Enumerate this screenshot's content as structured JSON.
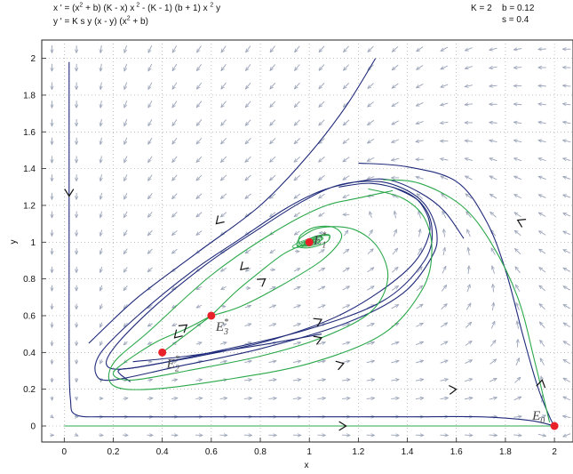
{
  "header": {
    "eq_x": {
      "p1": "x ' = (x",
      "s1": "2",
      "p2": " + b) (K - x) x",
      "s2": " 2",
      "p3": " - (K - 1) (b + 1) x ",
      "s3": " 2",
      "p4": " y"
    },
    "eq_y": "y ' = K s y (x - y) (x  + b)",
    "eq_y_parts": {
      "p1": "y ' = K s y (x - y) (x",
      "s1": "2",
      "p2": " + b)"
    },
    "param_K": "K = 2",
    "param_b": "b = 0.12",
    "param_s": "s = 0.4"
  },
  "chart_data": {
    "type": "phase-portrait",
    "title": "",
    "xlabel": "x",
    "ylabel": "y",
    "xlim": [
      -0.1,
      2.05
    ],
    "ylim": [
      -0.1,
      2.05
    ],
    "xticks": [
      "0",
      "0.2",
      "0.4",
      "0.6",
      "0.8",
      "1",
      "1.2",
      "1.4",
      "1.6",
      "1.8",
      "2"
    ],
    "yticks": [
      "0",
      "0.2",
      "0.4",
      "0.6",
      "0.8",
      "1",
      "1.2",
      "1.4",
      "1.6",
      "1.8",
      "2"
    ],
    "grid": "dotted",
    "params": {
      "K": 2,
      "b": 0.12,
      "s": 0.4
    },
    "equilibria": [
      {
        "name": "E0",
        "label_main": "E",
        "label_sub": "0",
        "label_sup": "",
        "x": 2.0,
        "y": 0.0
      },
      {
        "name": "E1*",
        "label_main": "E",
        "label_sub": "1",
        "label_sup": "*",
        "x": 1.0,
        "y": 1.0
      },
      {
        "name": "E2*",
        "label_main": "E",
        "label_sub": "2",
        "label_sup": "*",
        "x": 0.4,
        "y": 0.4
      },
      {
        "name": "E3*",
        "label_main": "E",
        "label_sub": "3",
        "label_sup": "*",
        "x": 0.6,
        "y": 0.6
      }
    ],
    "colors": {
      "blue": "#1f2a7a",
      "green": "#2aa84a",
      "field": "#9aa3b8",
      "point": "#e8202a",
      "grid": "#9a9a9a"
    },
    "blue_trajectories": [
      [
        [
          0.02,
          1.98
        ],
        [
          0.02,
          1.6
        ],
        [
          0.02,
          1.2
        ],
        [
          0.02,
          0.8
        ],
        [
          0.02,
          0.4
        ],
        [
          0.025,
          0.15
        ],
        [
          0.05,
          0.06
        ],
        [
          0.2,
          0.05
        ],
        [
          0.6,
          0.05
        ],
        [
          1.0,
          0.05
        ],
        [
          1.4,
          0.05
        ],
        [
          1.7,
          0.05
        ],
        [
          1.9,
          0.03
        ],
        [
          2.0,
          0.0
        ]
      ],
      [
        [
          0.1,
          0.45
        ],
        [
          0.3,
          0.7
        ],
        [
          0.55,
          0.95
        ],
        [
          0.8,
          1.2
        ],
        [
          1.0,
          1.48
        ],
        [
          1.15,
          1.74
        ],
        [
          1.27,
          2.0
        ]
      ],
      [
        [
          1.63,
          1.02
        ],
        [
          1.55,
          1.17
        ],
        [
          1.45,
          1.27
        ],
        [
          1.32,
          1.34
        ],
        [
          1.2,
          1.33
        ],
        [
          1.05,
          1.28
        ],
        [
          0.9,
          1.18
        ],
        [
          0.72,
          1.02
        ],
        [
          0.52,
          0.84
        ],
        [
          0.3,
          0.6
        ],
        [
          0.15,
          0.4
        ],
        [
          0.13,
          0.28
        ],
        [
          0.2,
          0.25
        ],
        [
          0.45,
          0.32
        ],
        [
          0.8,
          0.42
        ],
        [
          1.15,
          0.56
        ],
        [
          1.38,
          0.72
        ],
        [
          1.5,
          0.92
        ],
        [
          1.52,
          1.05
        ],
        [
          1.48,
          1.19
        ],
        [
          1.4,
          1.28
        ],
        [
          1.28,
          1.33
        ],
        [
          1.12,
          1.31
        ],
        [
          0.97,
          1.22
        ],
        [
          0.78,
          1.06
        ],
        [
          0.58,
          0.88
        ],
        [
          0.36,
          0.64
        ],
        [
          0.2,
          0.42
        ],
        [
          0.18,
          0.32
        ],
        [
          0.3,
          0.32
        ],
        [
          0.6,
          0.4
        ],
        [
          0.98,
          0.52
        ],
        [
          1.3,
          0.68
        ],
        [
          1.47,
          0.9
        ],
        [
          1.5,
          1.08
        ],
        [
          1.45,
          1.22
        ],
        [
          1.34,
          1.3
        ]
      ],
      [
        [
          0.27,
          0.24
        ],
        [
          0.22,
          0.3
        ],
        [
          0.3,
          0.32
        ],
        [
          0.55,
          0.38
        ],
        [
          0.85,
          0.47
        ],
        [
          1.15,
          0.62
        ],
        [
          1.4,
          0.85
        ],
        [
          1.49,
          1.05
        ],
        [
          1.46,
          1.2
        ],
        [
          1.38,
          1.28
        ],
        [
          1.25,
          1.32
        ],
        [
          1.12,
          1.3
        ]
      ],
      [
        [
          1.2,
          1.43
        ],
        [
          1.4,
          1.41
        ],
        [
          1.6,
          1.33
        ],
        [
          1.72,
          1.12
        ],
        [
          1.8,
          0.85
        ],
        [
          1.87,
          0.5
        ],
        [
          1.93,
          0.22
        ],
        [
          1.98,
          0.05
        ],
        [
          2.0,
          0.0
        ]
      ],
      [
        [
          0.28,
          0.35
        ],
        [
          0.5,
          0.38
        ],
        [
          0.8,
          0.44
        ],
        [
          1.05,
          0.5
        ]
      ]
    ],
    "green_trajectories": [
      [
        [
          0.0,
          0.0
        ],
        [
          0.4,
          0.0
        ],
        [
          0.8,
          0.0
        ],
        [
          1.2,
          0.0
        ],
        [
          1.6,
          0.0
        ],
        [
          2.0,
          0.0
        ]
      ],
      [
        [
          0.6,
          0.6
        ],
        [
          0.7,
          0.73
        ],
        [
          0.8,
          0.84
        ],
        [
          0.9,
          0.94
        ],
        [
          1.0,
          1.0
        ]
      ],
      [
        [
          0.6,
          0.6
        ],
        [
          0.5,
          0.5
        ],
        [
          0.4,
          0.4
        ]
      ],
      [
        [
          0.6,
          0.6
        ],
        [
          0.5,
          0.53
        ],
        [
          0.38,
          0.46
        ],
        [
          0.25,
          0.35
        ],
        [
          0.2,
          0.28
        ],
        [
          0.28,
          0.25
        ],
        [
          0.5,
          0.3
        ],
        [
          0.8,
          0.38
        ],
        [
          1.05,
          0.48
        ],
        [
          1.25,
          0.62
        ],
        [
          1.32,
          0.8
        ],
        [
          1.28,
          0.97
        ],
        [
          1.18,
          1.07
        ],
        [
          1.05,
          1.08
        ],
        [
          0.97,
          1.03
        ],
        [
          0.95,
          0.98
        ],
        [
          1.0,
          0.97
        ],
        [
          1.07,
          1.0
        ],
        [
          1.08,
          1.04
        ],
        [
          1.02,
          1.03
        ],
        [
          0.98,
          1.0
        ]
      ],
      [
        [
          0.6,
          0.6
        ],
        [
          0.72,
          0.65
        ],
        [
          0.88,
          0.76
        ],
        [
          1.05,
          0.9
        ],
        [
          1.13,
          1.02
        ],
        [
          1.1,
          1.08
        ],
        [
          1.02,
          1.08
        ],
        [
          0.96,
          1.03
        ],
        [
          0.97,
          0.98
        ],
        [
          1.03,
          0.99
        ],
        [
          1.05,
          1.03
        ],
        [
          1.0,
          1.02
        ]
      ],
      [
        [
          1.34,
          1.28
        ],
        [
          1.2,
          1.24
        ],
        [
          1.05,
          1.19
        ],
        [
          0.85,
          1.05
        ],
        [
          0.6,
          0.82
        ],
        [
          0.35,
          0.52
        ],
        [
          0.2,
          0.34
        ],
        [
          0.2,
          0.22
        ],
        [
          0.35,
          0.2
        ],
        [
          0.65,
          0.25
        ],
        [
          1.0,
          0.34
        ],
        [
          1.3,
          0.5
        ],
        [
          1.46,
          0.74
        ],
        [
          1.5,
          0.95
        ],
        [
          1.47,
          1.13
        ],
        [
          1.38,
          1.24
        ],
        [
          1.24,
          1.29
        ]
      ],
      [
        [
          1.98,
          0.02
        ],
        [
          1.92,
          0.35
        ],
        [
          1.85,
          0.7
        ],
        [
          1.74,
          1.0
        ],
        [
          1.62,
          1.2
        ],
        [
          1.45,
          1.32
        ],
        [
          1.3,
          1.34
        ]
      ]
    ],
    "flow_arrows": [
      {
        "curve": "blue",
        "x": 0.02,
        "y": 1.25,
        "dir": [
          0,
          -1
        ]
      },
      {
        "curve": "blue",
        "x": 0.62,
        "y": 1.1,
        "dir": [
          -1,
          -1
        ]
      },
      {
        "curve": "blue",
        "x": 1.85,
        "y": 1.12,
        "dir": [
          -1,
          0.5
        ]
      },
      {
        "curve": "blue",
        "x": 1.05,
        "y": 0.48,
        "dir": [
          1,
          0.4
        ]
      },
      {
        "curve": "blue",
        "x": 1.14,
        "y": 0.34,
        "dir": [
          1,
          0.3
        ]
      },
      {
        "curve": "blue",
        "x": 1.6,
        "y": 0.2,
        "dir": [
          1,
          0.1
        ]
      },
      {
        "curve": "blue",
        "x": 1.15,
        "y": 0.0,
        "dir": [
          1,
          0
        ]
      },
      {
        "curve": "blue",
        "x": 1.95,
        "y": 0.25,
        "dir": [
          0.2,
          1
        ]
      },
      {
        "curve": "blue",
        "x": 1.05,
        "y": 0.58,
        "dir": [
          1,
          0.5
        ]
      },
      {
        "curve": "green",
        "x": 0.82,
        "y": 0.8,
        "dir": [
          1,
          0.7
        ]
      },
      {
        "curve": "green",
        "x": 0.5,
        "y": 0.55,
        "dir": [
          1,
          0.8
        ]
      },
      {
        "curve": "green",
        "x": 0.72,
        "y": 0.85,
        "dir": [
          -1,
          -1
        ]
      },
      {
        "curve": "green",
        "x": 0.45,
        "y": 0.48,
        "dir": [
          -1,
          -1
        ]
      }
    ]
  }
}
